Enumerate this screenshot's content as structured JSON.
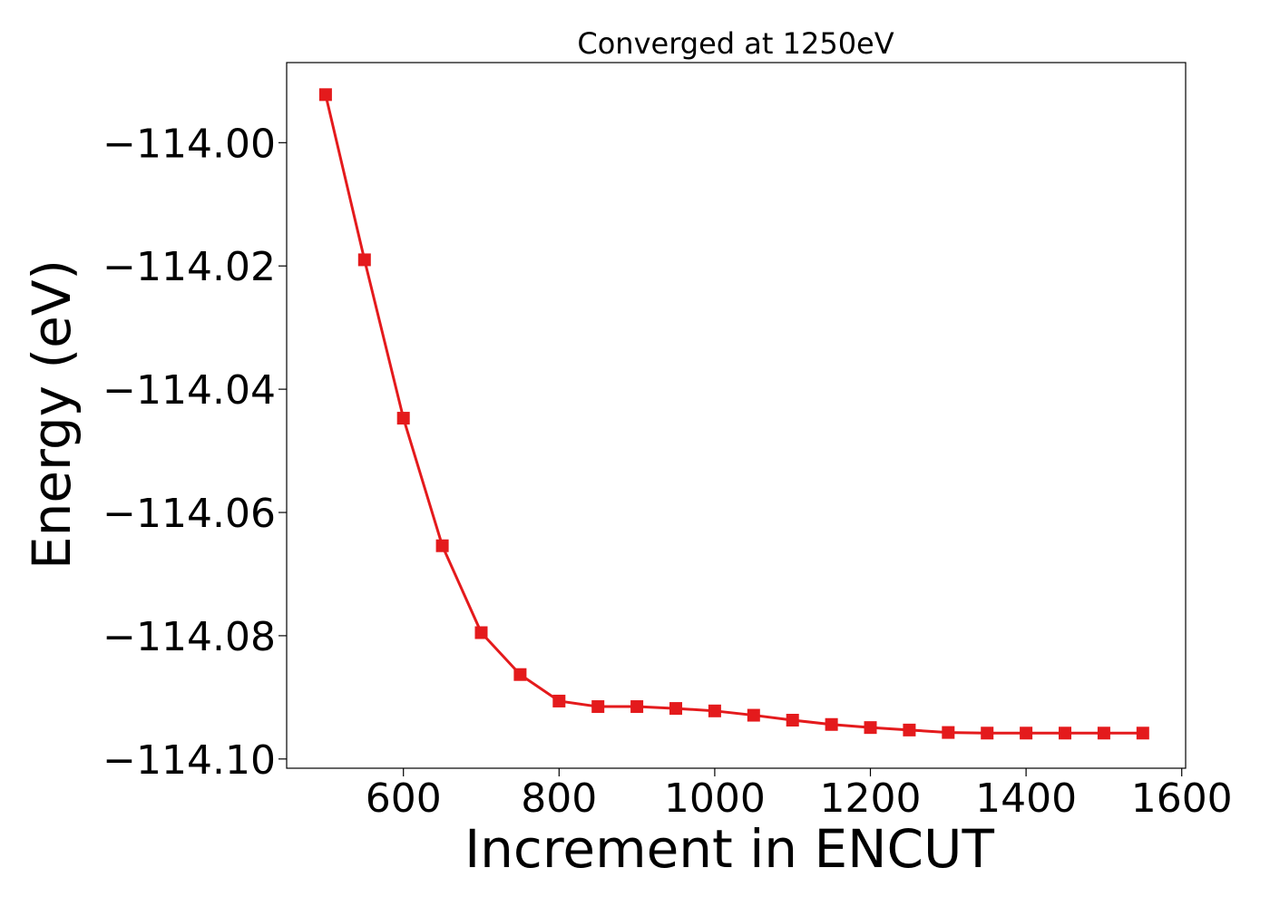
{
  "chart_data": {
    "type": "line",
    "title": "Converged at 1250eV",
    "xlabel": "Increment in ENCUT",
    "ylabel": "Energy (eV)",
    "xlim": [
      450,
      1605
    ],
    "ylim": [
      -114.1015,
      -113.987
    ],
    "xticks": [
      600,
      800,
      1000,
      1200,
      1400,
      1600
    ],
    "xtick_labels": [
      "600",
      "800",
      "1000",
      "1200",
      "1400",
      "1600"
    ],
    "yticks": [
      -114.0,
      -114.02,
      -114.04,
      -114.06,
      -114.08,
      -114.1
    ],
    "ytick_labels": [
      "−114.00",
      "−114.02",
      "−114.04",
      "−114.06",
      "−114.08",
      "−114.10"
    ],
    "grid": false,
    "marker": "square",
    "color": "#e41a1c",
    "series": [
      {
        "x": [
          500,
          550,
          600,
          650,
          700,
          750,
          800,
          850,
          900,
          950,
          1000,
          1050,
          1100,
          1150,
          1200,
          1250,
          1300,
          1350,
          1400,
          1450,
          1500,
          1550
        ],
        "y": [
          -113.9922,
          -114.019,
          -114.0447,
          -114.0654,
          -114.0795,
          -114.0863,
          -114.0906,
          -114.0915,
          -114.0915,
          -114.0918,
          -114.0922,
          -114.0929,
          -114.0937,
          -114.0944,
          -114.0949,
          -114.0953,
          -114.0957,
          -114.0958,
          -114.0958,
          -114.0958,
          -114.0958,
          -114.0958
        ]
      }
    ]
  }
}
